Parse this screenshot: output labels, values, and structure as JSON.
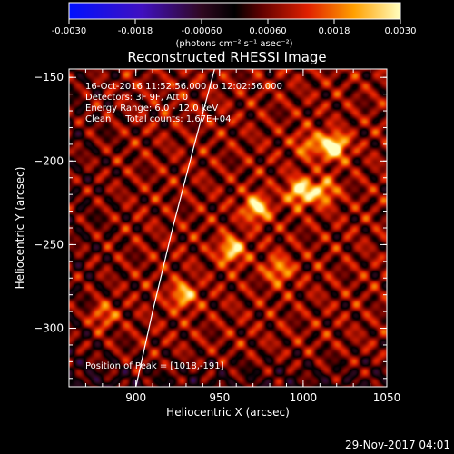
{
  "colorbar": {
    "ticks": [
      "-0.0030",
      "-0.0018",
      "-0.00060",
      "0.00060",
      "0.0018",
      "0.0030"
    ],
    "unit_label": "(photons cm⁻² s⁻¹ asec⁻²)",
    "range": [
      -0.003,
      0.003
    ]
  },
  "title": "Reconstructed RHESSI Image",
  "info": {
    "line1": "16-Oct-2016 11:52:56.000 to 12:02:56.000",
    "line2": "Detectors: 3F 9F, Att 0",
    "line3": "Energy Range: 6.0 - 12.0 keV",
    "line4": "Clean     Total counts: 1.67E+04"
  },
  "peak_text": "Position of Peak = [1018,-191]",
  "xaxis": {
    "label": "Heliocentric X (arcsec)",
    "range": [
      860,
      1050
    ],
    "ticks": [
      {
        "value": 900,
        "label": "900"
      },
      {
        "value": 950,
        "label": "950"
      },
      {
        "value": 1000,
        "label": "1000"
      },
      {
        "value": 1050,
        "label": "1050"
      }
    ]
  },
  "yaxis": {
    "label": "Heliocentric Y (arcsec)",
    "range": [
      -335,
      -145
    ],
    "ticks": [
      {
        "value": -150,
        "label": "−150"
      },
      {
        "value": -200,
        "label": "−200"
      },
      {
        "value": -250,
        "label": "−250"
      },
      {
        "value": -300,
        "label": "−300"
      }
    ]
  },
  "sources": [
    {
      "x": 1018,
      "y": -191,
      "strength": 1.0
    },
    {
      "x": 998,
      "y": -218,
      "strength": 0.85
    },
    {
      "x": 972,
      "y": -228,
      "strength": 0.8
    },
    {
      "x": 957,
      "y": -253,
      "strength": 0.75
    },
    {
      "x": 1012,
      "y": -218,
      "strength": 0.6
    },
    {
      "x": 985,
      "y": -265,
      "strength": 0.55
    },
    {
      "x": 928,
      "y": -280,
      "strength": 0.65
    },
    {
      "x": 1003,
      "y": -190,
      "strength": 0.45
    },
    {
      "x": 880,
      "y": -292,
      "strength": 0.5
    }
  ],
  "limb_points": [
    [
      947,
      -145
    ],
    [
      935,
      -190
    ],
    [
      922,
      -240
    ],
    [
      910,
      -290
    ],
    [
      900,
      -335
    ]
  ],
  "timestamp": "29-Nov-2017 04:01",
  "colors": {
    "background": "#000000",
    "text": "#ffffff",
    "limb": "#ffffff"
  }
}
